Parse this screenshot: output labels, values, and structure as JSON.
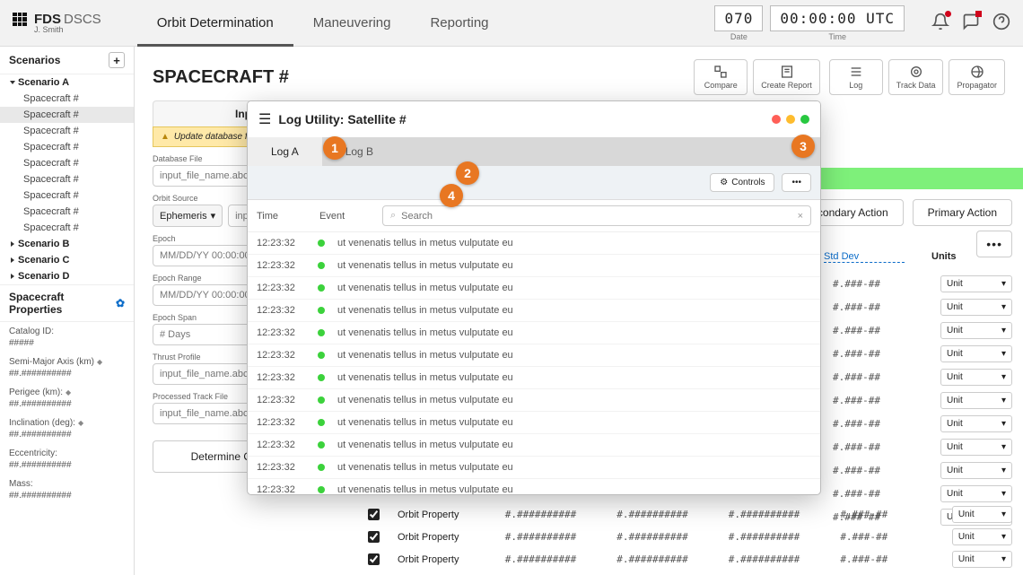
{
  "brand": {
    "bold": "FDS",
    "light": "DSCS",
    "user": "J. Smith"
  },
  "nav": {
    "items": [
      "Orbit Determination",
      "Maneuvering",
      "Reporting"
    ],
    "active": 0
  },
  "clock": {
    "date": "070",
    "time": "00:00:00",
    "tz": "UTC",
    "date_label": "Date",
    "time_label": "Time"
  },
  "sidebar": {
    "title": "Scenarios",
    "scenarios": [
      {
        "name": "Scenario A",
        "open": true,
        "children": [
          "Spacecraft #",
          "Spacecraft #",
          "Spacecraft #",
          "Spacecraft #",
          "Spacecraft #",
          "Spacecraft #",
          "Spacecraft #",
          "Spacecraft #",
          "Spacecraft #"
        ],
        "selected": 1
      },
      {
        "name": "Scenario B",
        "open": false
      },
      {
        "name": "Scenario C",
        "open": false
      },
      {
        "name": "Scenario D",
        "open": false
      }
    ],
    "props_title": "Spacecraft Properties",
    "props": [
      {
        "label": "Catalog ID:",
        "value": "#####"
      },
      {
        "label": "Semi-Major Axis (km)",
        "value": "##.##########",
        "sort": true
      },
      {
        "label": "Perigee (km):",
        "value": "##.##########",
        "sort": true
      },
      {
        "label": "Inclination (deg):",
        "value": "##.##########",
        "sort": true
      },
      {
        "label": "Eccentricity:",
        "value": "##.##########"
      },
      {
        "label": "Mass:",
        "value": "##.##########"
      }
    ]
  },
  "page": {
    "title": "SPACECRAFT #",
    "actions": [
      "Compare",
      "Create Report",
      "Log",
      "Track Data",
      "Propagator"
    ]
  },
  "inputs": {
    "tab": "Inputs",
    "alert": "Update database file",
    "fields": {
      "database_file": {
        "label": "Database File",
        "value": "input_file_name.abc"
      },
      "orbit_source": {
        "label": "Orbit Source",
        "select": "Ephemeris",
        "value": "input_file"
      },
      "epoch": {
        "label": "Epoch",
        "value": "MM/DD/YY 00:00:00 .000"
      },
      "epoch_range": {
        "label": "Epoch Range",
        "value": "MM/DD/YY 00:00:00 – M"
      },
      "epoch_span": {
        "label": "Epoch Span",
        "value": "# Days"
      },
      "thrust_profile": {
        "label": "Thrust Profile",
        "value": "input_file_name.abc"
      },
      "processed_track": {
        "label": "Processed Track File",
        "value": "input_file_name.abc"
      }
    },
    "button": "Determine Orbit"
  },
  "right": {
    "secondary": "Secondary Action",
    "primary": "Primary Action",
    "cols": {
      "stddev": "Std Dev",
      "units": "Units"
    },
    "unit": "Unit",
    "value": "#.###-##",
    "row_count": 11
  },
  "bottom": {
    "prop": "Orbit Property",
    "num": "#.##########",
    "rows": 3
  },
  "modal": {
    "title": "Log Utility: Satellite #",
    "tabs": [
      "Log A",
      "Log B"
    ],
    "active_tab": 0,
    "controls": "Controls",
    "search_placeholder": "Search",
    "headers": {
      "time": "Time",
      "event": "Event"
    },
    "dot_colors": [
      "#ff5f57",
      "#febc2e",
      "#28c840"
    ],
    "log_time": "12:23:32",
    "log_event": "ut venenatis tellus in metus vulputate eu",
    "log_count": 13
  },
  "callouts": {
    "c1": "1",
    "c2": "2",
    "c3": "3",
    "c4": "4"
  }
}
